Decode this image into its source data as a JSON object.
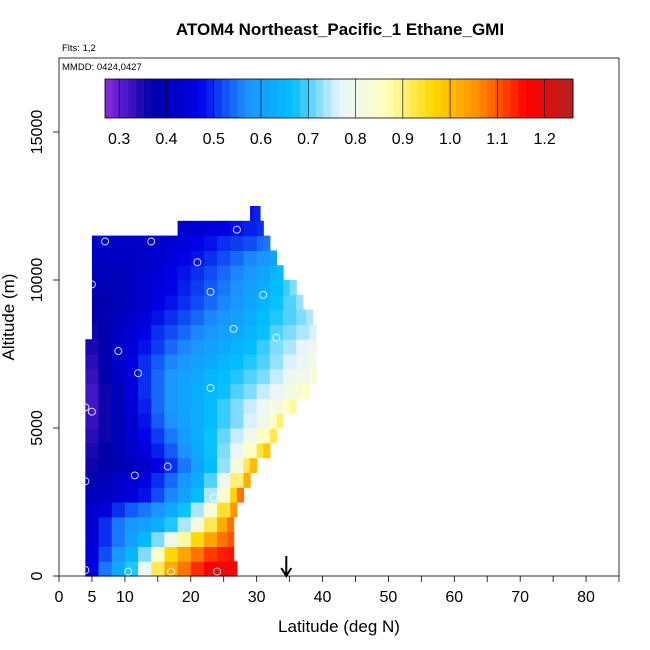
{
  "chart_data": {
    "type": "heatmap",
    "title": "ATOM4 Northeast_Pacific_1 Ethane_GMI",
    "annotations": [
      "Flts: 1,2",
      "MMDD: 0424,0427"
    ],
    "xlabel": "Latitude (deg N)",
    "ylabel": "Altitude (m)",
    "xlim": [
      0,
      85
    ],
    "ylim": [
      0,
      17500
    ],
    "x_ticks": [
      0,
      5,
      10,
      20,
      30,
      40,
      50,
      60,
      70,
      80
    ],
    "y_ticks": [
      0,
      5000,
      10000,
      15000
    ],
    "colorbar": {
      "range": [
        0.27,
        1.26
      ],
      "ticks": [
        0.3,
        0.4,
        0.5,
        0.6,
        0.7,
        0.8,
        0.9,
        1.0,
        1.1,
        1.2
      ],
      "tick_labels": [
        "0.3",
        "0.4",
        "0.5",
        "0.6",
        "0.7",
        "0.8",
        "0.9",
        "1.0",
        "1.1",
        "1.2"
      ],
      "colors": [
        "#8a2be2",
        "#0000a8",
        "#0000e6",
        "#1e90ff",
        "#00bfff",
        "#e8f4ff",
        "#ffffc0",
        "#ffd700",
        "#ff8c00",
        "#ff0000",
        "#b22222"
      ]
    },
    "arrow_latitude": 34.5,
    "profiles": [
      {
        "alt": 0,
        "x": [
          4,
          6,
          8,
          10,
          12,
          14,
          16,
          18,
          20,
          22,
          24,
          26
        ],
        "values": [
          0.46,
          0.55,
          0.62,
          0.68,
          0.78,
          0.92,
          1.02,
          1.08,
          1.13,
          1.17,
          1.18,
          1.18
        ]
      },
      {
        "alt": 500,
        "x": [
          4,
          6,
          8,
          10,
          12,
          14,
          16,
          18,
          20,
          22,
          24,
          25.5
        ],
        "values": [
          0.45,
          0.52,
          0.58,
          0.64,
          0.72,
          0.85,
          0.96,
          1.03,
          1.08,
          1.12,
          1.14,
          1.15
        ]
      },
      {
        "alt": 1000,
        "x": [
          4,
          6,
          8,
          10,
          12,
          14,
          16,
          18,
          20,
          22,
          24,
          25.5
        ],
        "values": [
          0.44,
          0.5,
          0.55,
          0.6,
          0.65,
          0.72,
          0.8,
          0.88,
          0.96,
          1.03,
          1.08,
          1.1
        ]
      },
      {
        "alt": 1500,
        "x": [
          4,
          6,
          8,
          10,
          12,
          14,
          16,
          18,
          20,
          22,
          24,
          25.5
        ],
        "values": [
          0.43,
          0.5,
          0.55,
          0.58,
          0.6,
          0.63,
          0.68,
          0.74,
          0.82,
          0.92,
          1.02,
          1.08
        ]
      },
      {
        "alt": 2000,
        "x": [
          4,
          6,
          8,
          10,
          12,
          14,
          16,
          18,
          20,
          22,
          24,
          26
        ],
        "values": [
          0.42,
          0.45,
          0.5,
          0.53,
          0.55,
          0.58,
          0.62,
          0.67,
          0.74,
          0.83,
          0.94,
          1.05
        ]
      },
      {
        "alt": 2500,
        "x": [
          4,
          6,
          8,
          10,
          12,
          14,
          16,
          18,
          20,
          22,
          24,
          26,
          27
        ],
        "values": [
          0.4,
          0.41,
          0.43,
          0.45,
          0.48,
          0.52,
          0.56,
          0.6,
          0.66,
          0.74,
          0.84,
          0.97,
          1.08
        ]
      },
      {
        "alt": 3000,
        "x": [
          4,
          6,
          8,
          10,
          12,
          14,
          16,
          18,
          20,
          22,
          24,
          26,
          28
        ],
        "values": [
          0.39,
          0.4,
          0.42,
          0.44,
          0.46,
          0.5,
          0.54,
          0.58,
          0.63,
          0.7,
          0.79,
          0.9,
          1.02
        ]
      },
      {
        "alt": 3500,
        "x": [
          4,
          6,
          8,
          10,
          12,
          14,
          16,
          18,
          20,
          22,
          24,
          26,
          28,
          29
        ],
        "values": [
          0.36,
          0.37,
          0.38,
          0.4,
          0.42,
          0.46,
          0.5,
          0.55,
          0.6,
          0.66,
          0.73,
          0.82,
          0.92,
          1.0
        ]
      },
      {
        "alt": 4000,
        "x": [
          4,
          6,
          8,
          10,
          12,
          14,
          16,
          18,
          20,
          22,
          24,
          26,
          28,
          30,
          31
        ],
        "values": [
          0.35,
          0.37,
          0.39,
          0.42,
          0.45,
          0.49,
          0.53,
          0.57,
          0.62,
          0.67,
          0.72,
          0.78,
          0.85,
          0.93,
          0.98
        ]
      },
      {
        "alt": 4500,
        "x": [
          4,
          6,
          8,
          10,
          12,
          14,
          16,
          18,
          20,
          22,
          24,
          26,
          28,
          30,
          32
        ],
        "values": [
          0.34,
          0.36,
          0.39,
          0.43,
          0.47,
          0.51,
          0.55,
          0.59,
          0.63,
          0.67,
          0.71,
          0.75,
          0.8,
          0.86,
          0.92
        ]
      },
      {
        "alt": 5000,
        "x": [
          4,
          6,
          8,
          10,
          12,
          14,
          16,
          18,
          20,
          22,
          24,
          26,
          28,
          30,
          32,
          33
        ],
        "values": [
          0.33,
          0.36,
          0.39,
          0.43,
          0.48,
          0.53,
          0.57,
          0.6,
          0.63,
          0.66,
          0.69,
          0.72,
          0.76,
          0.8,
          0.85,
          0.9
        ]
      },
      {
        "alt": 5500,
        "x": [
          4,
          6,
          8,
          10,
          12,
          14,
          16,
          18,
          20,
          22,
          24,
          26,
          28,
          30,
          32,
          34,
          35
        ],
        "values": [
          0.32,
          0.36,
          0.4,
          0.44,
          0.49,
          0.54,
          0.58,
          0.61,
          0.63,
          0.66,
          0.69,
          0.72,
          0.75,
          0.78,
          0.82,
          0.86,
          0.88
        ]
      },
      {
        "alt": 6000,
        "x": [
          4,
          6,
          8,
          10,
          12,
          14,
          16,
          18,
          20,
          22,
          24,
          26,
          28,
          30,
          32,
          34,
          36,
          37
        ],
        "values": [
          0.32,
          0.36,
          0.4,
          0.45,
          0.5,
          0.54,
          0.58,
          0.61,
          0.63,
          0.65,
          0.67,
          0.7,
          0.72,
          0.75,
          0.78,
          0.81,
          0.84,
          0.86
        ]
      },
      {
        "alt": 6500,
        "x": [
          4,
          6,
          8,
          10,
          12,
          14,
          16,
          18,
          20,
          22,
          24,
          26,
          28,
          30,
          32,
          34,
          36,
          38
        ],
        "values": [
          0.33,
          0.37,
          0.41,
          0.45,
          0.5,
          0.54,
          0.58,
          0.6,
          0.62,
          0.64,
          0.66,
          0.68,
          0.7,
          0.72,
          0.75,
          0.78,
          0.8,
          0.83
        ]
      },
      {
        "alt": 7000,
        "x": [
          4,
          6,
          8,
          10,
          12,
          14,
          16,
          18,
          20,
          22,
          24,
          26,
          28,
          30,
          32,
          34,
          36,
          38
        ],
        "values": [
          0.34,
          0.38,
          0.42,
          0.46,
          0.5,
          0.53,
          0.56,
          0.58,
          0.6,
          0.62,
          0.64,
          0.66,
          0.68,
          0.7,
          0.73,
          0.76,
          0.78,
          0.8
        ]
      },
      {
        "alt": 7500,
        "x": [
          4,
          6,
          8,
          10,
          12,
          14,
          16,
          18,
          20,
          22,
          24,
          26,
          28,
          30,
          32,
          34,
          36,
          38
        ],
        "values": [
          0.35,
          0.38,
          0.42,
          0.45,
          0.48,
          0.51,
          0.54,
          0.56,
          0.58,
          0.6,
          0.62,
          0.64,
          0.66,
          0.69,
          0.72,
          0.74,
          0.77,
          0.79
        ]
      },
      {
        "alt": 8000,
        "x": [
          5,
          6,
          8,
          10,
          12,
          14,
          16,
          18,
          20,
          22,
          24,
          26,
          28,
          30,
          32,
          34,
          36,
          38
        ],
        "values": [
          0.36,
          0.38,
          0.41,
          0.44,
          0.47,
          0.5,
          0.52,
          0.54,
          0.56,
          0.58,
          0.6,
          0.62,
          0.64,
          0.67,
          0.7,
          0.72,
          0.74,
          0.76
        ]
      },
      {
        "alt": 8500,
        "x": [
          5,
          6,
          8,
          10,
          12,
          14,
          16,
          18,
          20,
          22,
          24,
          26,
          28,
          30,
          32,
          34,
          36,
          37.5
        ],
        "values": [
          0.37,
          0.38,
          0.4,
          0.42,
          0.45,
          0.48,
          0.5,
          0.52,
          0.54,
          0.56,
          0.58,
          0.6,
          0.63,
          0.66,
          0.68,
          0.7,
          0.72,
          0.74
        ]
      },
      {
        "alt": 9000,
        "x": [
          5,
          6,
          8,
          10,
          12,
          14,
          16,
          18,
          20,
          22,
          24,
          26,
          28,
          30,
          32,
          34,
          36
        ],
        "values": [
          0.38,
          0.38,
          0.39,
          0.41,
          0.43,
          0.46,
          0.48,
          0.5,
          0.52,
          0.54,
          0.56,
          0.58,
          0.61,
          0.64,
          0.67,
          0.7,
          0.73
        ]
      },
      {
        "alt": 9500,
        "x": [
          5,
          6,
          8,
          10,
          12,
          14,
          16,
          18,
          20,
          22,
          24,
          26,
          28,
          30,
          32,
          34,
          35
        ],
        "values": [
          0.39,
          0.39,
          0.4,
          0.41,
          0.43,
          0.45,
          0.47,
          0.49,
          0.51,
          0.53,
          0.55,
          0.57,
          0.6,
          0.63,
          0.66,
          0.69,
          0.72
        ]
      },
      {
        "alt": 10000,
        "x": [
          5,
          6,
          8,
          10,
          12,
          14,
          16,
          18,
          20,
          22,
          24,
          26,
          28,
          30,
          32,
          33
        ],
        "values": [
          0.4,
          0.4,
          0.4,
          0.41,
          0.42,
          0.44,
          0.46,
          0.48,
          0.5,
          0.52,
          0.54,
          0.56,
          0.58,
          0.61,
          0.64,
          0.66
        ]
      },
      {
        "alt": 10500,
        "x": [
          5,
          6,
          8,
          10,
          12,
          14,
          16,
          18,
          20,
          22,
          24,
          26,
          28,
          30,
          32
        ],
        "values": [
          0.41,
          0.41,
          0.41,
          0.41,
          0.42,
          0.43,
          0.45,
          0.47,
          0.48,
          0.5,
          0.52,
          0.54,
          0.56,
          0.58,
          0.6
        ]
      },
      {
        "alt": 11000,
        "x": [
          5,
          6,
          8,
          10,
          12,
          14,
          16,
          18,
          20,
          22,
          24,
          26,
          28,
          30,
          31
        ],
        "values": [
          0.42,
          0.42,
          0.42,
          0.42,
          0.42,
          0.43,
          0.44,
          0.45,
          0.47,
          0.48,
          0.5,
          0.51,
          0.52,
          0.54,
          0.55
        ]
      },
      {
        "alt": 11500,
        "x": [
          18,
          20,
          22,
          24,
          26,
          28,
          30
        ],
        "values": [
          0.43,
          0.44,
          0.45,
          0.46,
          0.48,
          0.49,
          0.5
        ]
      },
      {
        "alt": 12000,
        "x": [
          29,
          29.5
        ],
        "values": [
          0.48,
          0.49
        ]
      }
    ],
    "sample_points": [
      {
        "x": 4,
        "alt": 200
      },
      {
        "x": 10.5,
        "alt": 150
      },
      {
        "x": 17,
        "alt": 150
      },
      {
        "x": 24,
        "alt": 150
      },
      {
        "x": 4,
        "alt": 3200
      },
      {
        "x": 11.5,
        "alt": 3400
      },
      {
        "x": 16.5,
        "alt": 3700
      },
      {
        "x": 23.5,
        "alt": 2650
      },
      {
        "x": 4,
        "alt": 5700
      },
      {
        "x": 5,
        "alt": 5550
      },
      {
        "x": 23,
        "alt": 6350
      },
      {
        "x": 12,
        "alt": 6850
      },
      {
        "x": 9,
        "alt": 7600
      },
      {
        "x": 33,
        "alt": 8050
      },
      {
        "x": 26.5,
        "alt": 8350
      },
      {
        "x": 5,
        "alt": 9850
      },
      {
        "x": 23,
        "alt": 9600
      },
      {
        "x": 31,
        "alt": 9500
      },
      {
        "x": 21,
        "alt": 10600
      },
      {
        "x": 7,
        "alt": 11300
      },
      {
        "x": 14,
        "alt": 11300
      },
      {
        "x": 27,
        "alt": 11700
      }
    ]
  }
}
